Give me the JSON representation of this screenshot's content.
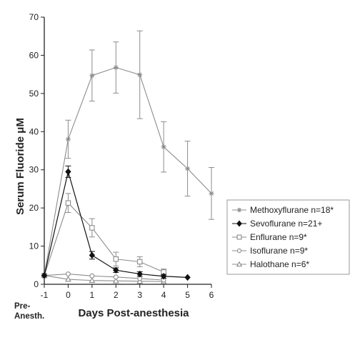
{
  "chart_data": {
    "type": "line",
    "xlabel": "Days Post-anesthesia",
    "ylabel": "Serum Fluoride μM",
    "x_pre_label_line1": "Pre-",
    "x_pre_label_line2": "Anesth.",
    "xlim": [
      -1,
      6
    ],
    "ylim": [
      0,
      70
    ],
    "xticks": [
      -1,
      0,
      1,
      2,
      3,
      4,
      5,
      6
    ],
    "yticks": [
      0,
      10,
      20,
      30,
      40,
      50,
      60,
      70
    ],
    "grid": false,
    "legend_position": "right",
    "series": [
      {
        "name": "Methoxyflurane n=18*",
        "marker": "asterisk",
        "color": "#8c8c8c",
        "x": [
          -1,
          0,
          1,
          2,
          3,
          4,
          5,
          6
        ],
        "y": [
          2.3,
          38,
          54.7,
          56.8,
          54.9,
          36,
          30.3,
          23.8
        ],
        "err": [
          0,
          5,
          6.7,
          6.7,
          11.5,
          6.6,
          7.2,
          6.8
        ]
      },
      {
        "name": "Sevoflurane n=21+",
        "marker": "diamond",
        "color": "#111111",
        "x": [
          -1,
          0,
          1,
          2,
          3,
          4,
          5
        ],
        "y": [
          2.3,
          29.5,
          7.6,
          3.7,
          2.7,
          2.1,
          1.8
        ],
        "err": [
          0,
          1.5,
          1,
          0.6,
          0.6,
          0.5,
          0
        ]
      },
      {
        "name": "Enflurane n=9*",
        "marker": "square",
        "color": "#8c8c8c",
        "x": [
          -1,
          0,
          1,
          2,
          3,
          4
        ],
        "y": [
          2.3,
          21.3,
          14.8,
          6.6,
          5.9,
          3.2
        ],
        "err": [
          0,
          2.5,
          2.4,
          1.8,
          1.3,
          0.8
        ]
      },
      {
        "name": "Isoflurane n=9*",
        "marker": "circle",
        "color": "#8c8c8c",
        "x": [
          -1,
          0,
          1,
          2,
          3,
          4
        ],
        "y": [
          2.3,
          2.7,
          2.2,
          1.9,
          1.5,
          1.1
        ],
        "err": [
          0,
          0,
          0,
          0,
          0,
          0
        ]
      },
      {
        "name": "Halothane n=6*",
        "marker": "triangle",
        "color": "#8c8c8c",
        "x": [
          -1,
          0,
          1,
          2,
          3,
          4
        ],
        "y": [
          2.3,
          1.3,
          1.0,
          0.9,
          0.8,
          0.7
        ],
        "err": [
          0,
          0,
          0,
          0,
          0,
          0
        ]
      }
    ]
  }
}
